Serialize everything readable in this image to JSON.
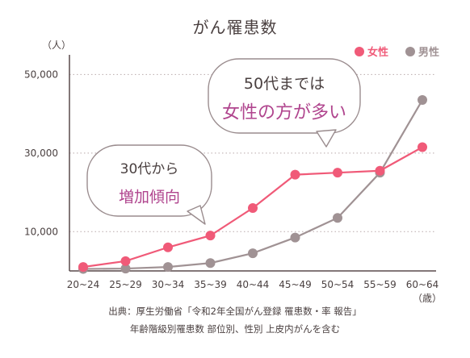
{
  "chart_data": {
    "type": "line",
    "title": "がん罹患数",
    "ylabel": "（人）",
    "xunit": "（歳）",
    "categories": [
      "20~24",
      "25~29",
      "30~34",
      "35~39",
      "40~44",
      "45~49",
      "50~54",
      "55~59",
      "60~64"
    ],
    "ylim": [
      0,
      55000
    ],
    "yticks": [
      10000,
      30000,
      50000
    ],
    "ytick_labels": [
      "10,000",
      "30,000",
      "50,000"
    ],
    "series": [
      {
        "name": "女性",
        "color": "#f05a78",
        "values": [
          1000,
          2500,
          6000,
          9000,
          16000,
          24500,
          25000,
          25500,
          31500
        ]
      },
      {
        "name": "男性",
        "color": "#a09294",
        "values": [
          500,
          600,
          1000,
          2000,
          4500,
          8500,
          13500,
          25000,
          43500
        ]
      }
    ],
    "grid": true,
    "legend_position": "top-right",
    "annotations": [
      {
        "id": "b1",
        "lines": [
          "50代までは",
          "女性の方が多い"
        ],
        "colors": [
          "#4a4040",
          "#b0458e"
        ]
      },
      {
        "id": "b2",
        "lines": [
          "30代から",
          "増加傾向"
        ],
        "colors": [
          "#4a4040",
          "#b0458e"
        ]
      }
    ]
  },
  "source": {
    "line1": "出典：厚生労働省「令和2年全国がん登録 罹患数・率 報告」",
    "line2": "年齢階級別罹患数 部位別、性別 上皮内がんを含む"
  }
}
